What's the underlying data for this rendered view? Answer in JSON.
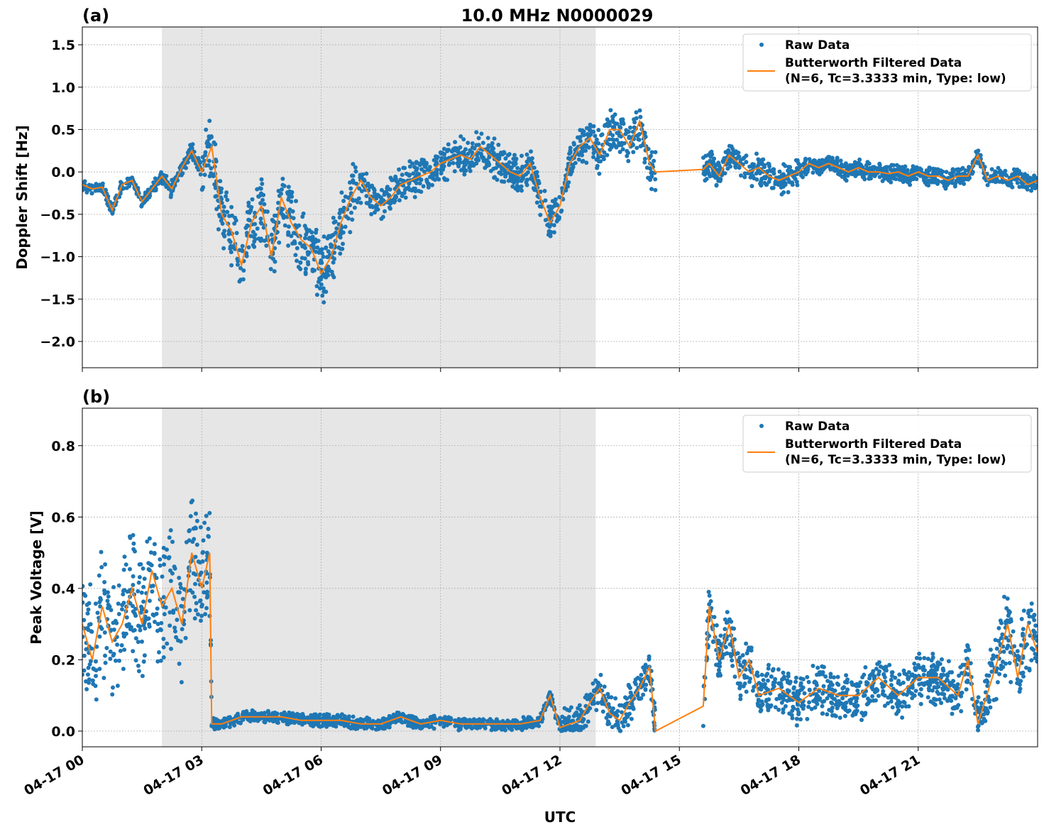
{
  "title": "10.0 MHz N0000029",
  "colors": {
    "raw": "#1f77b4",
    "filtered": "#ff7f0e",
    "shade": "#e6e6e6"
  },
  "legend": {
    "raw": "Raw Data",
    "filtered_line1": "Butterworth Filtered Data",
    "filtered_line2": "(N=6, Tc=3.3333 min, Type: low)",
    "placement": "top-right"
  },
  "xlabel": "UTC",
  "x_ticks": [
    "04-17 00",
    "04-17 03",
    "04-17 06",
    "04-17 09",
    "04-17 12",
    "04-17 15",
    "04-17 18",
    "04-17 21"
  ],
  "chart_data": [
    {
      "type": "scatter+line",
      "panel_label": "(a)",
      "ylabel": "Doppler Shift [Hz]",
      "x_unit": "hours UTC on 04-17",
      "xlim": [
        0,
        24
      ],
      "ylim": [
        -2.31,
        1.71
      ],
      "y_ticks": [
        "−2.0",
        "−1.5",
        "−1.0",
        "−0.5",
        "0.0",
        "0.5",
        "1.0",
        "1.5"
      ],
      "y_tick_values": [
        -2.0,
        -1.5,
        -1.0,
        -0.5,
        0.0,
        0.5,
        1.0,
        1.5
      ],
      "grid": true,
      "shaded_interval": [
        2.0,
        12.9
      ],
      "filtered": {
        "x": [
          0,
          0.25,
          0.5,
          0.75,
          1,
          1.25,
          1.5,
          1.75,
          2,
          2.25,
          2.5,
          2.75,
          3,
          3.25,
          3.5,
          3.75,
          4,
          4.25,
          4.5,
          4.75,
          5,
          5.25,
          5.5,
          5.75,
          6,
          6.25,
          6.5,
          6.75,
          7,
          7.25,
          7.5,
          7.75,
          8,
          8.25,
          8.5,
          8.75,
          9,
          9.25,
          9.5,
          9.75,
          10,
          10.25,
          10.5,
          10.75,
          11,
          11.25,
          11.5,
          11.75,
          12,
          12.25,
          12.5,
          12.75,
          13,
          13.25,
          13.5,
          13.75,
          14,
          14.25,
          14.4,
          15.6,
          15.75,
          16,
          16.25,
          16.5,
          16.75,
          17,
          17.25,
          17.5,
          17.75,
          18,
          18.25,
          18.5,
          18.75,
          19,
          19.25,
          19.5,
          19.75,
          20,
          20.25,
          20.5,
          20.75,
          21,
          21.25,
          21.5,
          21.75,
          22,
          22.25,
          22.5,
          22.75,
          23,
          23.25,
          23.5,
          23.75,
          24
        ],
        "y": [
          -0.15,
          -0.2,
          -0.18,
          -0.45,
          -0.15,
          -0.1,
          -0.35,
          -0.2,
          -0.05,
          -0.2,
          0.05,
          0.25,
          0.0,
          0.3,
          -0.5,
          -0.7,
          -1.1,
          -0.6,
          -0.4,
          -1.0,
          -0.3,
          -0.6,
          -0.8,
          -0.9,
          -1.2,
          -1.0,
          -0.6,
          -0.3,
          -0.1,
          -0.3,
          -0.4,
          -0.3,
          -0.15,
          -0.1,
          -0.05,
          0.0,
          0.1,
          0.15,
          0.2,
          0.15,
          0.3,
          0.2,
          0.1,
          0.0,
          -0.05,
          0.1,
          -0.3,
          -0.6,
          -0.4,
          0.1,
          0.3,
          0.4,
          0.2,
          0.5,
          0.5,
          0.3,
          0.6,
          0.1,
          0.0,
          0.03,
          0.1,
          -0.05,
          0.2,
          0.1,
          0.0,
          0.05,
          -0.05,
          -0.1,
          -0.05,
          0.0,
          0.1,
          0.05,
          0.1,
          0.05,
          0.0,
          0.05,
          0.0,
          0.0,
          -0.02,
          0.0,
          -0.05,
          0.0,
          -0.05,
          -0.05,
          -0.1,
          -0.05,
          -0.05,
          0.2,
          -0.1,
          -0.05,
          -0.1,
          -0.05,
          -0.15,
          -0.1
        ]
      },
      "raw_spread": [
        {
          "from": 0,
          "to": 2,
          "spread": 0.08
        },
        {
          "from": 2,
          "to": 3,
          "spread": 0.12
        },
        {
          "from": 3,
          "to": 7,
          "spread": 0.45
        },
        {
          "from": 7,
          "to": 12.5,
          "spread": 0.25
        },
        {
          "from": 12.5,
          "to": 14.4,
          "spread": 0.3
        },
        {
          "from": 15.6,
          "to": 18,
          "spread": 0.2
        },
        {
          "from": 18,
          "to": 24,
          "spread": 0.12
        }
      ]
    },
    {
      "type": "scatter+line",
      "panel_label": "(b)",
      "ylabel": "Peak Voltage [V]",
      "x_unit": "hours UTC on 04-17",
      "xlim": [
        0,
        24
      ],
      "ylim": [
        -0.044,
        0.905
      ],
      "y_ticks": [
        "0.0",
        "0.2",
        "0.4",
        "0.6",
        "0.8"
      ],
      "y_tick_values": [
        0.0,
        0.2,
        0.4,
        0.6,
        0.8
      ],
      "grid": true,
      "shaded_interval": [
        2.0,
        12.9
      ],
      "filtered": {
        "x": [
          0,
          0.25,
          0.5,
          0.75,
          1,
          1.25,
          1.5,
          1.75,
          2,
          2.25,
          2.5,
          2.75,
          3,
          3.2,
          3.25,
          3.5,
          4,
          4.5,
          5,
          5.5,
          6,
          6.5,
          7,
          7.5,
          8,
          8.5,
          9,
          9.5,
          10,
          10.5,
          11,
          11.5,
          11.75,
          12,
          12.5,
          12.75,
          13,
          13.25,
          13.5,
          13.75,
          14,
          14.25,
          14.4,
          15.6,
          15.75,
          16,
          16.25,
          16.5,
          16.75,
          17,
          17.5,
          18,
          18.5,
          19,
          19.5,
          20,
          20.5,
          21,
          21.5,
          22,
          22.25,
          22.5,
          23,
          23.25,
          23.5,
          23.75,
          24
        ],
        "y": [
          0.3,
          0.2,
          0.35,
          0.25,
          0.3,
          0.4,
          0.3,
          0.45,
          0.35,
          0.4,
          0.3,
          0.5,
          0.4,
          0.5,
          0.02,
          0.02,
          0.04,
          0.04,
          0.04,
          0.03,
          0.03,
          0.03,
          0.02,
          0.02,
          0.04,
          0.02,
          0.03,
          0.02,
          0.02,
          0.02,
          0.02,
          0.03,
          0.1,
          0.01,
          0.03,
          0.08,
          0.12,
          0.05,
          0.03,
          0.08,
          0.12,
          0.18,
          0.0,
          0.07,
          0.35,
          0.2,
          0.3,
          0.15,
          0.2,
          0.1,
          0.12,
          0.08,
          0.12,
          0.1,
          0.1,
          0.15,
          0.1,
          0.15,
          0.15,
          0.1,
          0.2,
          0.02,
          0.2,
          0.3,
          0.15,
          0.3,
          0.22
        ]
      },
      "raw_spread": [
        {
          "from": 0,
          "to": 3.2,
          "spread": 0.2
        },
        {
          "from": 3.2,
          "to": 12,
          "spread": 0.02
        },
        {
          "from": 12,
          "to": 14.4,
          "spread": 0.06
        },
        {
          "from": 15.6,
          "to": 22.8,
          "spread": 0.08
        },
        {
          "from": 22.8,
          "to": 24,
          "spread": 0.14
        }
      ]
    }
  ]
}
